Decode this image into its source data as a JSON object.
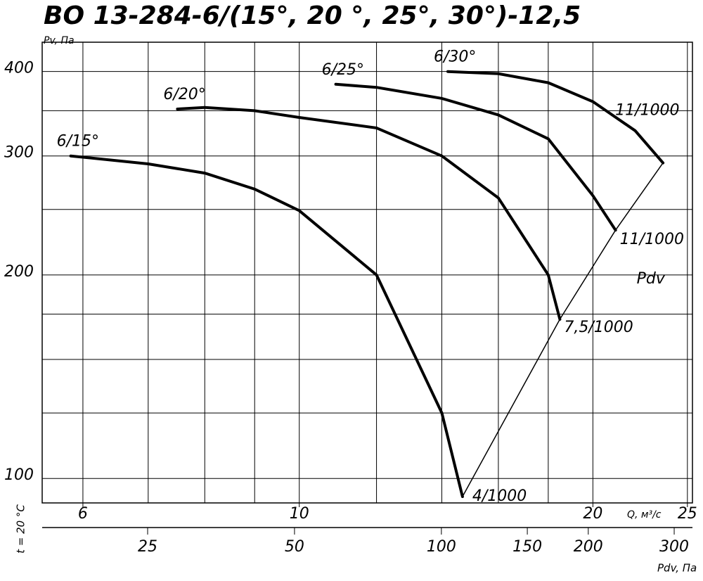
{
  "chart_data": {
    "type": "line",
    "title": "ВО 13-284-6/(15°, 20 °, 25°, 30°)-12,5",
    "y_label": "Pv, Па",
    "x_label": "Q, м³/с",
    "x2_label": "Pdv, Па",
    "side_note": "t = 20 °C",
    "xscale": "log",
    "yscale": "log",
    "x2scale": "log",
    "xlim": [
      5.45,
      25.3
    ],
    "xticks": [
      6,
      10,
      20,
      25
    ],
    "xgrid": [
      6,
      7,
      8,
      9,
      10,
      12,
      14,
      16,
      18,
      20,
      25
    ],
    "ylim": [
      92,
      442
    ],
    "yticks": [
      100,
      200,
      300,
      400
    ],
    "ygrid": [
      125,
      150,
      175,
      250,
      350
    ],
    "x2lim": [
      15.2,
      327
    ],
    "x2ticks": [
      25,
      50,
      100,
      150,
      200,
      300
    ],
    "grid": true,
    "color": "#000000",
    "series": [
      {
        "name": "6/15°",
        "end_label": "4/1000",
        "x": [
          5.83,
          7,
          8,
          9,
          10,
          12,
          14,
          14.7
        ],
        "values": [
          300,
          292,
          283,
          268,
          249,
          200,
          125,
          94
        ]
      },
      {
        "name": "6/20°",
        "end_label": "7,5/1000",
        "x": [
          7.5,
          8,
          9,
          10,
          12,
          14,
          16,
          18,
          18.5
        ],
        "values": [
          352,
          354,
          350,
          342,
          330,
          300,
          260,
          200,
          172
        ]
      },
      {
        "name": "6/25°",
        "end_label": "11/1000",
        "x": [
          10.9,
          12,
          14,
          16,
          18,
          20,
          21.1
        ],
        "values": [
          383,
          379,
          365,
          345,
          318,
          262,
          233
        ]
      },
      {
        "name": "6/30°",
        "end_label": "11/1000",
        "x": [
          14.2,
          16,
          18,
          20,
          22.1,
          23.6
        ],
        "values": [
          400,
          397,
          385,
          361,
          327,
          293
        ]
      }
    ],
    "pdv_line": {
      "name": "Pdv",
      "x": [
        14.7,
        18.5,
        21.1,
        23.6
      ],
      "values": [
        94,
        172,
        233,
        293
      ]
    }
  }
}
